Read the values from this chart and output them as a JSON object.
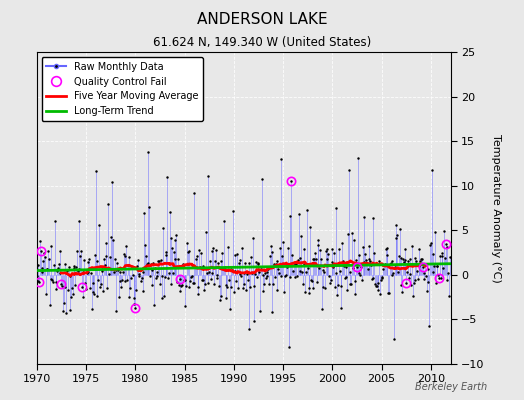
{
  "title": "ANDERSON LAKE",
  "subtitle": "61.624 N, 149.340 W (United States)",
  "ylabel": "Temperature Anomaly (°C)",
  "credit": "Berkeley Earth",
  "xlim": [
    1970,
    2012
  ],
  "ylim": [
    -10,
    25
  ],
  "yticks": [
    -10,
    -5,
    0,
    5,
    10,
    15,
    20,
    25
  ],
  "xticks": [
    1970,
    1975,
    1980,
    1985,
    1990,
    1995,
    2000,
    2005,
    2010
  ],
  "raw_color": "#6666FF",
  "moving_avg_color": "#FF0000",
  "trend_color": "#00BB00",
  "qc_fail_color": "#FF00FF",
  "bg_color": "#E8E8E8",
  "grid_color": "#FFFFFF",
  "seed": 12345
}
